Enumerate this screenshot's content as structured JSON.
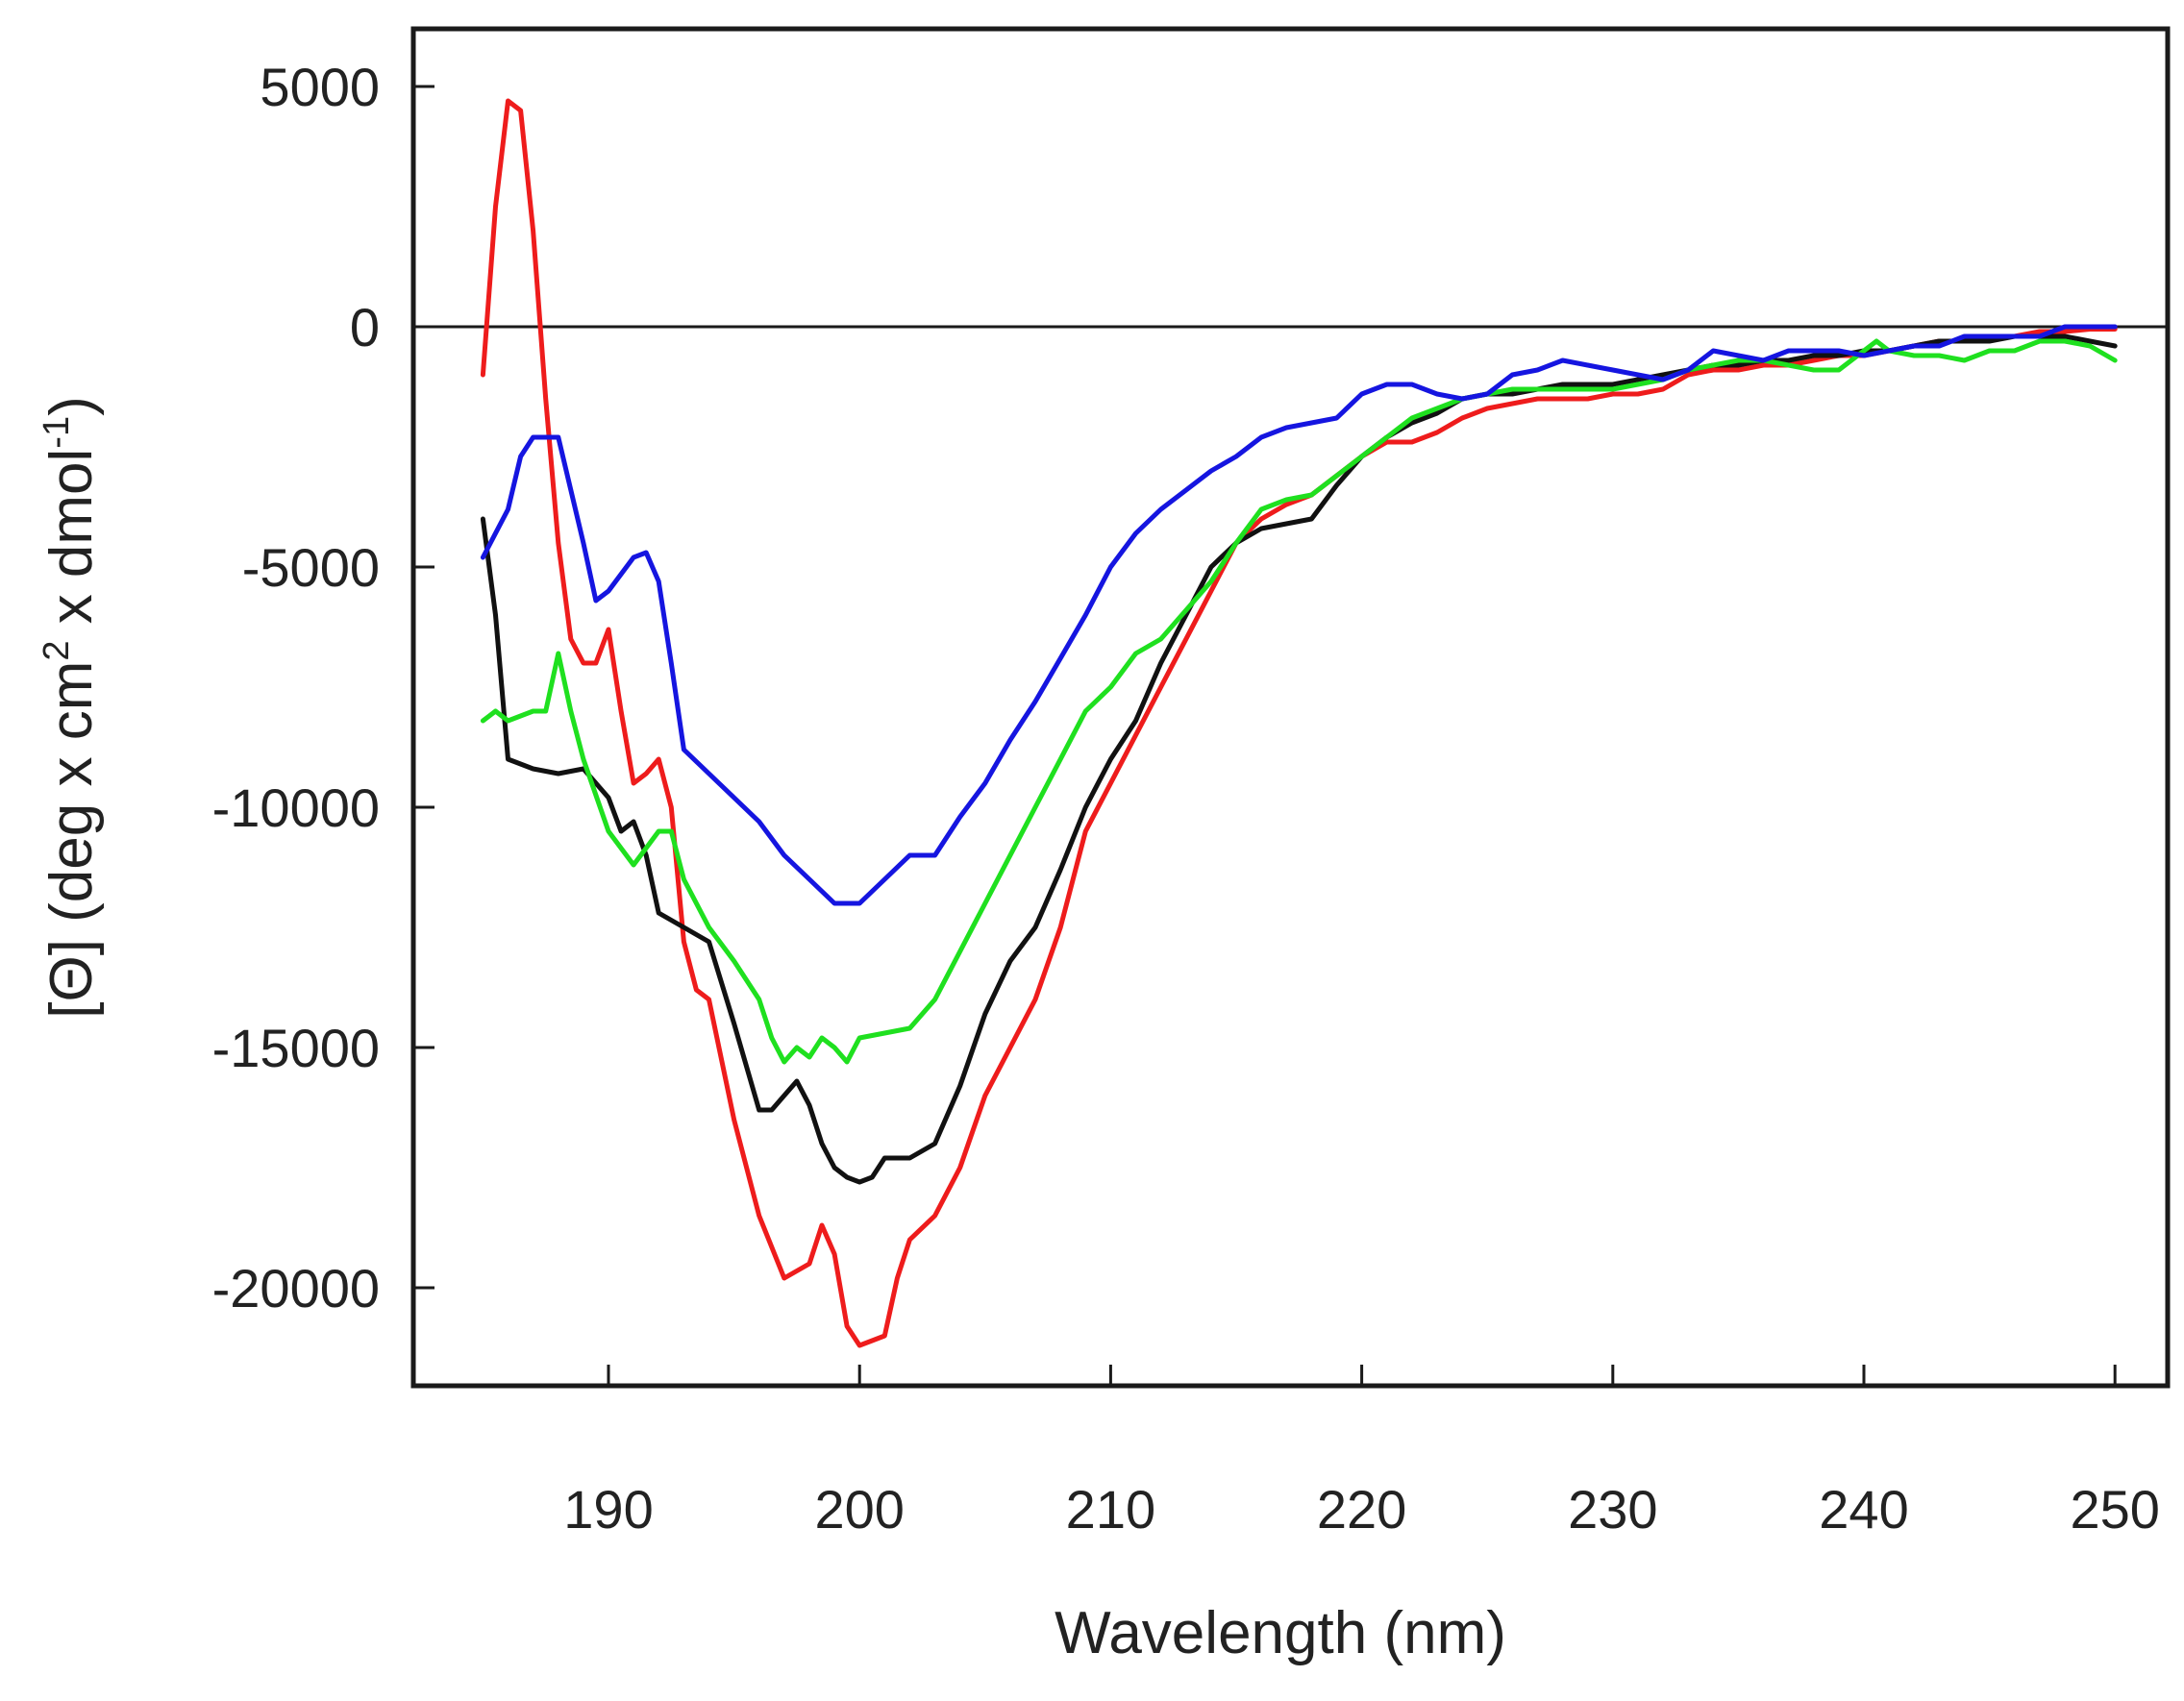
{
  "chart_data": {
    "type": "line",
    "title": "",
    "xlabel": "Wavelength (nm)",
    "ylabel_parts": [
      "[",
      "Θ",
      "] (deg x cm",
      "2",
      " x dmol",
      "-1",
      ")"
    ],
    "xlim": [
      185,
      251
    ],
    "ylim": [
      -22000,
      6000
    ],
    "x_ticks": [
      190,
      200,
      210,
      220,
      230,
      240,
      250
    ],
    "x_tick_labels": [
      "190",
      "200",
      "210",
      "220",
      "230",
      "240",
      "250"
    ],
    "y_ticks": [
      5000,
      0,
      -5000,
      -10000,
      -15000,
      -20000
    ],
    "y_tick_labels": [
      "5000",
      "0",
      "-5000",
      "-10000",
      "-15000",
      "-20000"
    ],
    "zero_line": 0,
    "legend": "none",
    "series": [
      {
        "name": "red",
        "color": "#ee1c1c",
        "x": [
          185.0,
          185.5,
          186.0,
          186.5,
          187.0,
          187.5,
          188.0,
          188.5,
          189.0,
          189.5,
          190.0,
          190.5,
          191.0,
          191.5,
          192.0,
          192.5,
          193.0,
          193.5,
          194.0,
          195.0,
          196.0,
          197.0,
          198.0,
          198.5,
          199.0,
          199.5,
          200.0,
          200.5,
          201.0,
          201.5,
          202.0,
          203.0,
          204.0,
          205.0,
          206.0,
          207.0,
          208.0,
          209.0,
          210.0,
          211.0,
          212.0,
          213.0,
          214.0,
          215.0,
          216.0,
          217.0,
          218.0,
          219.0,
          220.0,
          221.0,
          222.0,
          223.0,
          224.0,
          225.0,
          226.0,
          227.0,
          228.0,
          229.0,
          230.0,
          231.0,
          232.0,
          233.0,
          234.0,
          235.0,
          236.0,
          237.0,
          238.0,
          239.0,
          240.0,
          241.0,
          242.0,
          243.0,
          244.0,
          245.0,
          246.0,
          247.0,
          248.0,
          249.0,
          250.0
        ],
        "y": [
          -1000,
          2500,
          4700,
          4500,
          2000,
          -1500,
          -4500,
          -6500,
          -7000,
          -7000,
          -6300,
          -8000,
          -9500,
          -9300,
          -9000,
          -10000,
          -12800,
          -13800,
          -14000,
          -16500,
          -18500,
          -19800,
          -19500,
          -18700,
          -19300,
          -20800,
          -21200,
          -21100,
          -21000,
          -19800,
          -19000,
          -18500,
          -17500,
          -16000,
          -15000,
          -14000,
          -12500,
          -10500,
          -9500,
          -8500,
          -7500,
          -6500,
          -5500,
          -4500,
          -4000,
          -3700,
          -3500,
          -3100,
          -2700,
          -2400,
          -2400,
          -2200,
          -1900,
          -1700,
          -1600,
          -1500,
          -1500,
          -1500,
          -1400,
          -1400,
          -1300,
          -1000,
          -900,
          -900,
          -800,
          -800,
          -700,
          -600,
          -600,
          -500,
          -400,
          -300,
          -300,
          -200,
          -200,
          -100,
          -100,
          -50,
          -50
        ]
      },
      {
        "name": "black",
        "color": "#111111",
        "x": [
          185.0,
          185.5,
          186.0,
          187.0,
          188.0,
          189.0,
          190.0,
          190.5,
          191.0,
          191.5,
          192.0,
          193.0,
          194.0,
          195.0,
          196.0,
          196.5,
          197.0,
          197.5,
          198.0,
          198.5,
          199.0,
          199.5,
          200.0,
          200.5,
          201.0,
          201.5,
          202.0,
          203.0,
          204.0,
          205.0,
          206.0,
          207.0,
          208.0,
          209.0,
          210.0,
          211.0,
          212.0,
          213.0,
          214.0,
          215.0,
          216.0,
          217.0,
          218.0,
          219.0,
          220.0,
          221.0,
          222.0,
          223.0,
          224.0,
          225.0,
          226.0,
          227.0,
          228.0,
          229.0,
          230.0,
          231.0,
          232.0,
          233.0,
          234.0,
          235.0,
          236.0,
          237.0,
          238.0,
          239.0,
          240.0,
          241.0,
          242.0,
          243.0,
          244.0,
          245.0,
          246.0,
          247.0,
          248.0,
          249.0,
          250.0
        ],
        "y": [
          -4000,
          -6000,
          -9000,
          -9200,
          -9300,
          -9200,
          -9800,
          -10500,
          -10300,
          -11000,
          -12200,
          -12500,
          -12800,
          -14500,
          -16300,
          -16300,
          -16000,
          -15700,
          -16200,
          -17000,
          -17500,
          -17700,
          -17800,
          -17700,
          -17300,
          -17300,
          -17300,
          -17000,
          -15800,
          -14300,
          -13200,
          -12500,
          -11300,
          -10000,
          -9000,
          -8200,
          -7000,
          -6000,
          -5000,
          -4500,
          -4200,
          -4100,
          -4000,
          -3300,
          -2700,
          -2300,
          -2000,
          -1800,
          -1500,
          -1400,
          -1400,
          -1300,
          -1200,
          -1200,
          -1200,
          -1100,
          -1000,
          -900,
          -800,
          -800,
          -700,
          -700,
          -600,
          -600,
          -500,
          -500,
          -400,
          -300,
          -300,
          -300,
          -200,
          -200,
          -200,
          -300,
          -400
        ]
      },
      {
        "name": "green",
        "color": "#1fe01f",
        "x": [
          185.0,
          185.5,
          186.0,
          187.0,
          187.5,
          188.0,
          188.5,
          189.0,
          190.0,
          191.0,
          192.0,
          192.5,
          193.0,
          194.0,
          195.0,
          196.0,
          196.5,
          197.0,
          197.5,
          198.0,
          198.5,
          199.0,
          199.5,
          200.0,
          201.0,
          202.0,
          203.0,
          204.0,
          205.0,
          206.0,
          207.0,
          208.0,
          209.0,
          210.0,
          211.0,
          212.0,
          213.0,
          214.0,
          215.0,
          216.0,
          217.0,
          218.0,
          219.0,
          220.0,
          221.0,
          222.0,
          223.0,
          224.0,
          225.0,
          226.0,
          227.0,
          228.0,
          229.0,
          230.0,
          231.0,
          232.0,
          233.0,
          234.0,
          235.0,
          236.0,
          237.0,
          238.0,
          239.0,
          240.0,
          240.5,
          241.0,
          242.0,
          243.0,
          244.0,
          245.0,
          246.0,
          247.0,
          248.0,
          249.0,
          250.0
        ],
        "y": [
          -8200,
          -8000,
          -8200,
          -8000,
          -8000,
          -6800,
          -8000,
          -9000,
          -10500,
          -11200,
          -10500,
          -10500,
          -11500,
          -12500,
          -13200,
          -14000,
          -14800,
          -15300,
          -15000,
          -15200,
          -14800,
          -15000,
          -15300,
          -14800,
          -14700,
          -14600,
          -14000,
          -13000,
          -12000,
          -11000,
          -10000,
          -9000,
          -8000,
          -7500,
          -6800,
          -6500,
          -5900,
          -5300,
          -4500,
          -3800,
          -3600,
          -3500,
          -3100,
          -2700,
          -2300,
          -1900,
          -1700,
          -1500,
          -1400,
          -1300,
          -1300,
          -1300,
          -1300,
          -1300,
          -1200,
          -1100,
          -900,
          -800,
          -700,
          -700,
          -800,
          -900,
          -900,
          -500,
          -300,
          -500,
          -600,
          -600,
          -700,
          -500,
          -500,
          -300,
          -300,
          -400,
          -700
        ]
      },
      {
        "name": "blue",
        "color": "#1515e0",
        "x": [
          185.0,
          186.0,
          186.5,
          187.0,
          187.5,
          188.0,
          189.0,
          189.5,
          190.0,
          191.0,
          191.5,
          192.0,
          192.5,
          193.0,
          194.0,
          195.0,
          196.0,
          197.0,
          198.0,
          199.0,
          199.5,
          200.0,
          201.0,
          202.0,
          203.0,
          204.0,
          205.0,
          206.0,
          207.0,
          208.0,
          209.0,
          210.0,
          211.0,
          212.0,
          213.0,
          214.0,
          215.0,
          216.0,
          217.0,
          218.0,
          219.0,
          220.0,
          221.0,
          222.0,
          223.0,
          224.0,
          225.0,
          226.0,
          227.0,
          228.0,
          229.0,
          230.0,
          231.0,
          232.0,
          233.0,
          234.0,
          235.0,
          236.0,
          237.0,
          238.0,
          239.0,
          240.0,
          241.0,
          242.0,
          243.0,
          244.0,
          245.0,
          246.0,
          247.0,
          248.0,
          249.0,
          250.0
        ],
        "y": [
          -4800,
          -3800,
          -2700,
          -2300,
          -2300,
          -2300,
          -4500,
          -5700,
          -5500,
          -4800,
          -4700,
          -5300,
          -7000,
          -8800,
          -9300,
          -9800,
          -10300,
          -11000,
          -11500,
          -12000,
          -12000,
          -12000,
          -11500,
          -11000,
          -11000,
          -10200,
          -9500,
          -8600,
          -7800,
          -6900,
          -6000,
          -5000,
          -4300,
          -3800,
          -3400,
          -3000,
          -2700,
          -2300,
          -2100,
          -2000,
          -1900,
          -1400,
          -1200,
          -1200,
          -1400,
          -1500,
          -1400,
          -1000,
          -900,
          -700,
          -800,
          -900,
          -1000,
          -1100,
          -900,
          -500,
          -600,
          -700,
          -500,
          -500,
          -500,
          -600,
          -500,
          -400,
          -400,
          -200,
          -200,
          -200,
          -200,
          0,
          0,
          0
        ]
      }
    ]
  }
}
